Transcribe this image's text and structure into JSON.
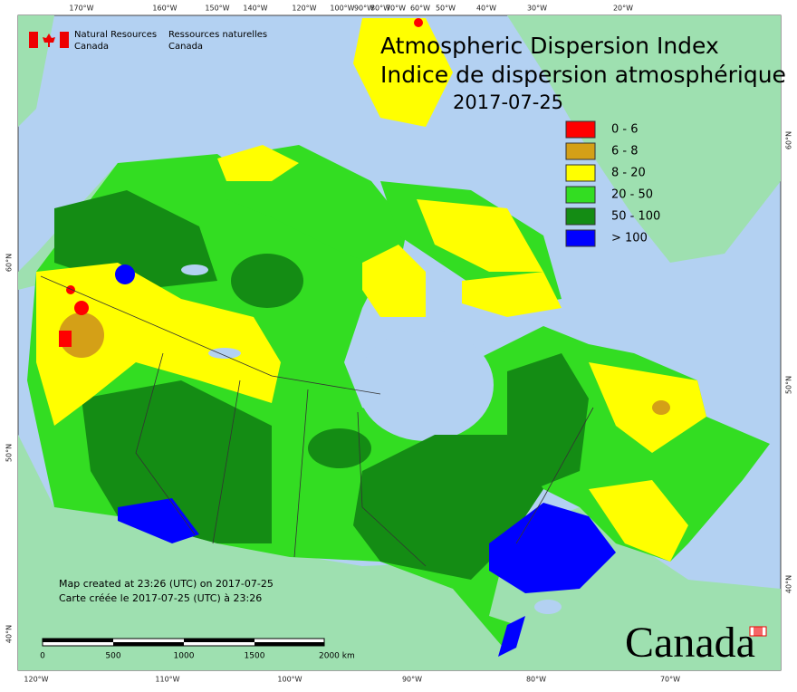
{
  "agency": {
    "en_line1": "Natural Resources",
    "en_line2": "Canada",
    "fr_line1": "Ressources naturelles",
    "fr_line2": "Canada"
  },
  "title": {
    "en": "Atmospheric Dispersion Index",
    "fr": "Indice de dispersion atmosphérique",
    "date": "2017-07-25"
  },
  "legend": [
    {
      "label": "0 - 6",
      "color": "#ff0000"
    },
    {
      "label": "6 - 8",
      "color": "#d4a017"
    },
    {
      "label": "8 - 20",
      "color": "#ffff00"
    },
    {
      "label": "20 - 50",
      "color": "#33dd22"
    },
    {
      "label": "50 - 100",
      "color": "#148c14"
    },
    {
      "label": "> 100",
      "color": "#0000ff"
    }
  ],
  "credits": [
    "Map created at 23:26 (UTC) on 2017-07-25",
    "Carte créée le 2017-07-25 (UTC) à 23:26"
  ],
  "scale_bar": [
    "0",
    "500",
    "1000",
    "1500",
    "2000 km"
  ],
  "graticule": {
    "top": [
      "170°W",
      "160°W",
      "150°W",
      "140°W",
      "120°W",
      "100°W",
      "90°W",
      "80°W",
      "70°W",
      "60°W",
      "50°W",
      "40°W",
      "30°W",
      "20°W"
    ],
    "bottom": [
      "120°W",
      "110°W",
      "100°W",
      "90°W",
      "80°W",
      "70°W"
    ],
    "left": [
      "60°N",
      "50°N",
      "40°N"
    ],
    "right": [
      "60°N",
      "50°N",
      "40°N"
    ]
  },
  "wordmark": "Canada"
}
